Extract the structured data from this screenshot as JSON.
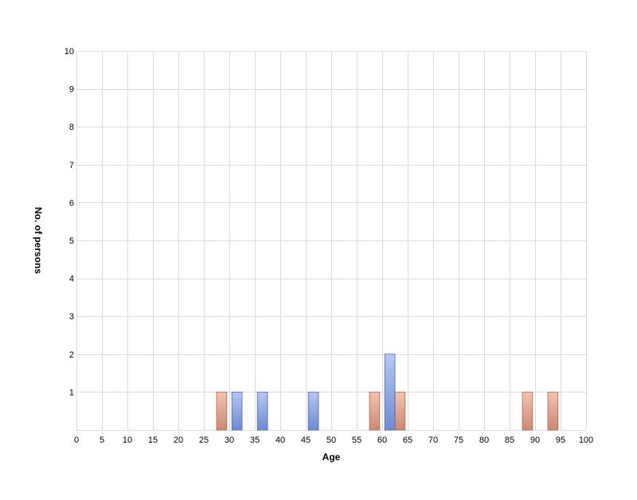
{
  "chart_data": {
    "type": "bar",
    "title": "",
    "xlabel": "Age",
    "ylabel": "No. of persons",
    "xlim": [
      0,
      100
    ],
    "ylim": [
      0,
      10
    ],
    "x_ticks": [
      0,
      5,
      10,
      15,
      20,
      25,
      30,
      35,
      40,
      45,
      50,
      55,
      60,
      65,
      70,
      75,
      80,
      85,
      90,
      95,
      100
    ],
    "y_ticks": [
      1,
      2,
      3,
      4,
      5,
      6,
      7,
      8,
      9,
      10
    ],
    "grid": true,
    "legend": "none",
    "bar_width_units": 2,
    "series": [
      {
        "color": "#e8a58e",
        "points": [
          {
            "x": 28.5,
            "y": 1
          },
          {
            "x": 58.5,
            "y": 1
          },
          {
            "x": 63.5,
            "y": 1
          },
          {
            "x": 88.5,
            "y": 1
          },
          {
            "x": 93.5,
            "y": 1
          }
        ]
      },
      {
        "color": "#8ea7e6",
        "points": [
          {
            "x": 31.5,
            "y": 1
          },
          {
            "x": 36.5,
            "y": 1
          },
          {
            "x": 46.5,
            "y": 1
          },
          {
            "x": 61.5,
            "y": 2
          }
        ]
      }
    ]
  }
}
